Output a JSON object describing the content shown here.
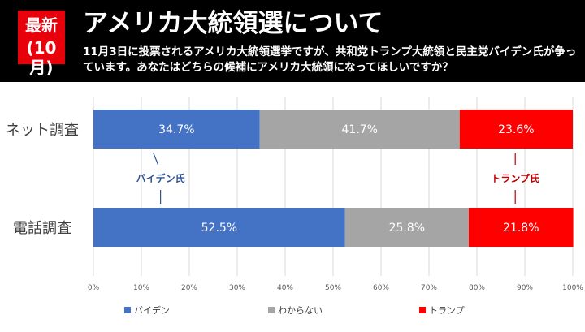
{
  "header": {
    "badge_line1": "最新",
    "badge_line2": "(10月)",
    "title": "アメリカ大統領選について",
    "question": "11月3日に投票されるアメリカ大統領選挙ですが、共和党トランプ大統領と民主党バイデン氏が争っています。あなたはどちらの候補にアメリカ大統領になってほしいですか？"
  },
  "colors": {
    "header_bg": "#000000",
    "badge_bg": "#e8000b",
    "biden": "#4472c4",
    "unknown": "#a5a5a5",
    "trump": "#ff0000",
    "biden_label": "#2f5597",
    "trump_label": "#c00000"
  },
  "chart_data": {
    "type": "bar",
    "orientation": "horizontal",
    "stacked": true,
    "normalized": true,
    "categories": [
      "ネット調査",
      "電話調査"
    ],
    "series": [
      {
        "name": "バイデン",
        "values": [
          34.7,
          52.5
        ],
        "labels": [
          "34.7%",
          "52.5%"
        ]
      },
      {
        "name": "わからない",
        "values": [
          41.7,
          25.8
        ],
        "labels": [
          "41.7%",
          "25.8%"
        ]
      },
      {
        "name": "トランプ",
        "values": [
          23.6,
          21.8
        ],
        "labels": [
          "23.6%",
          "21.8%"
        ]
      }
    ],
    "xlim": [
      0,
      100
    ],
    "xticks": [
      "0%",
      "10%",
      "20%",
      "30%",
      "40%",
      "50%",
      "60%",
      "70%",
      "80%",
      "90%",
      "100%"
    ],
    "annotations": [
      {
        "text": "バイデン氏",
        "series": "バイデン"
      },
      {
        "text": "トランプ氏",
        "series": "トランプ"
      }
    ],
    "legend": "bottom",
    "grid": true
  }
}
